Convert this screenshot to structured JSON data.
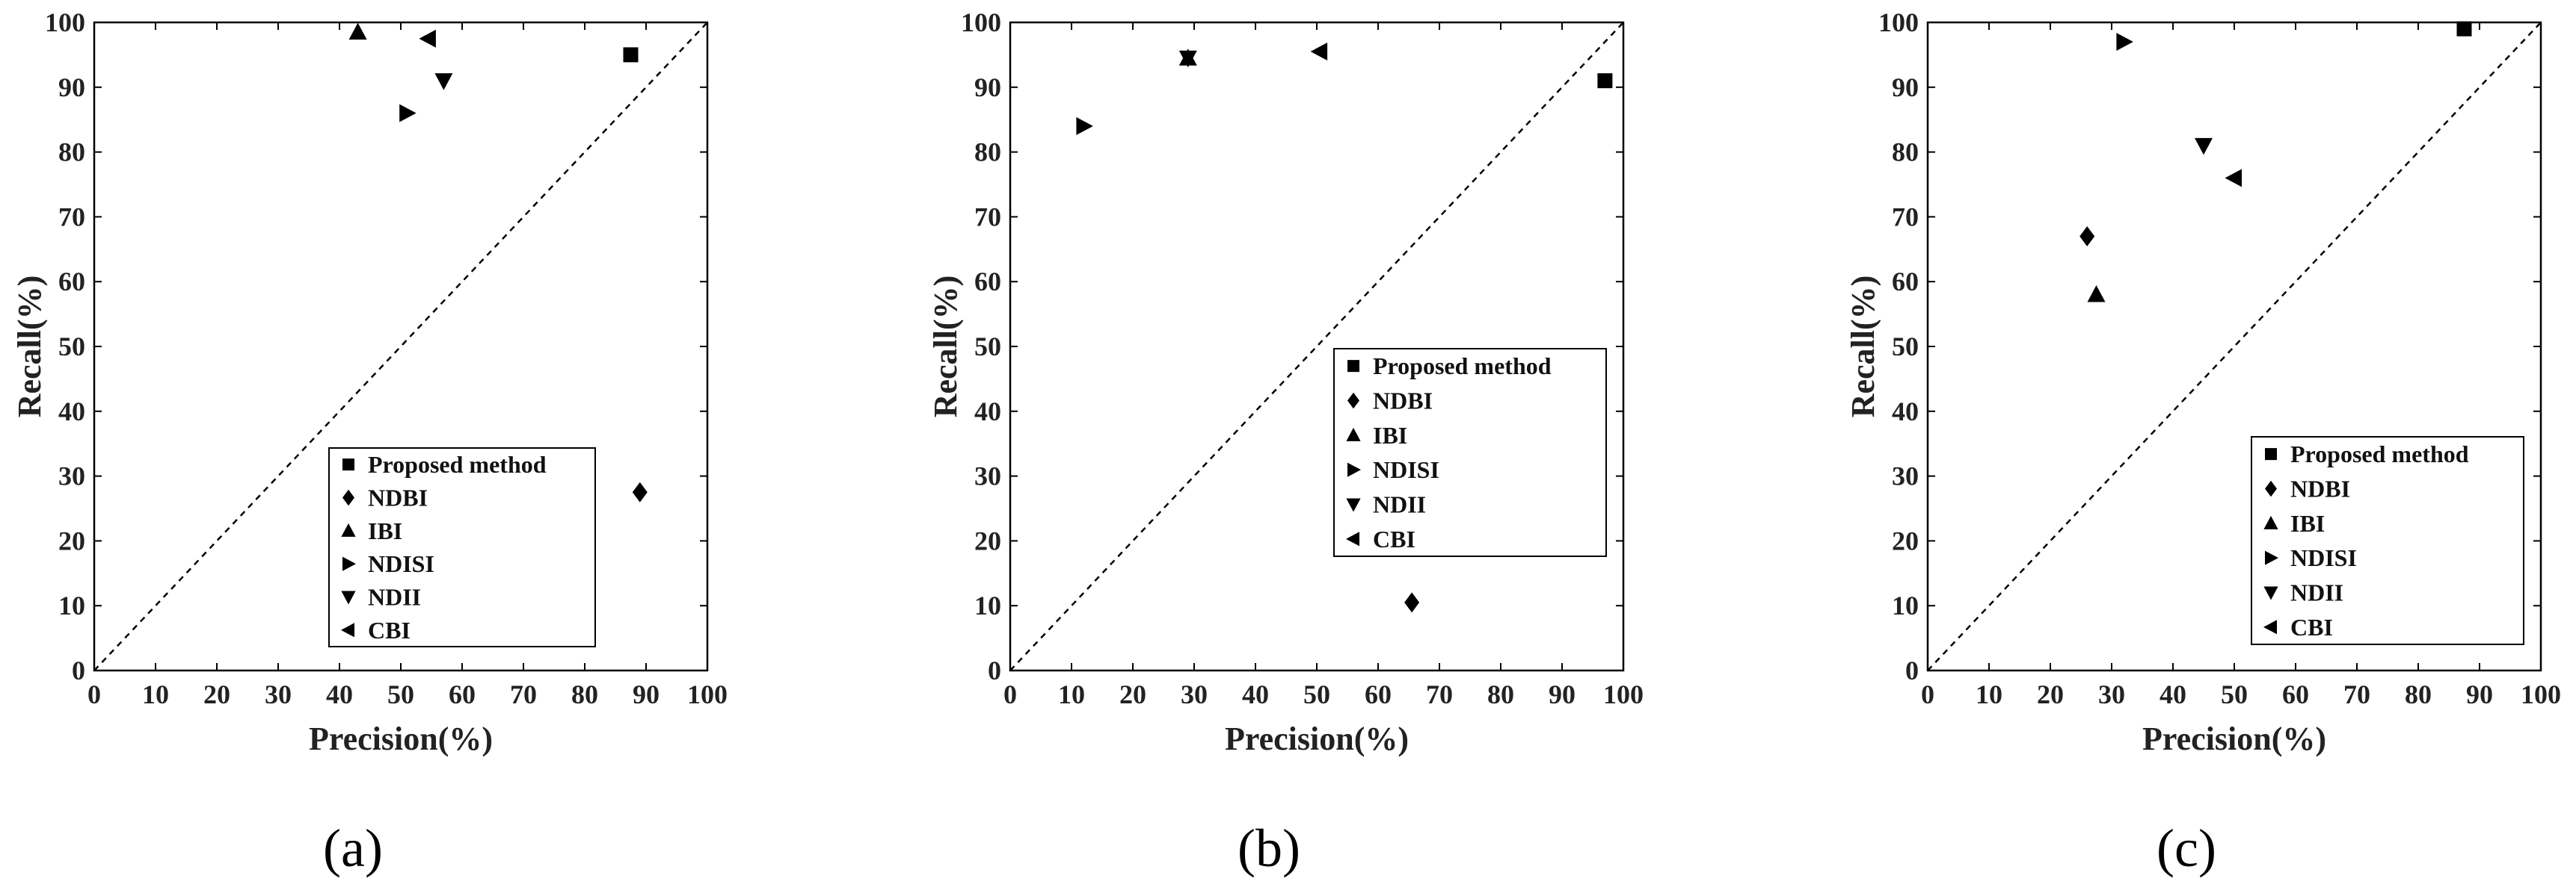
{
  "chart_data": [
    {
      "type": "scatter",
      "panel_label": "(a)",
      "xlabel": "Precision(%)",
      "ylabel": "Recall(%)",
      "xlim": [
        0,
        100
      ],
      "ylim": [
        0,
        100
      ],
      "xticks": [
        "0",
        "10",
        "20",
        "30",
        "40",
        "50",
        "60",
        "70",
        "80",
        "90",
        "100"
      ],
      "yticks": [
        "0",
        "10",
        "20",
        "30",
        "40",
        "50",
        "60",
        "70",
        "80",
        "90",
        "100"
      ],
      "grid": false,
      "reference_line": "y = x (dashed)",
      "legend_position": "bottom-right",
      "series": [
        {
          "name": "Proposed method",
          "marker": "square",
          "x": 87.5,
          "y": 95
        },
        {
          "name": "NDBI",
          "marker": "diamond",
          "x": 89,
          "y": 27.5
        },
        {
          "name": "IBI",
          "marker": "triangle-up",
          "x": 43,
          "y": 98.5
        },
        {
          "name": "NDISI",
          "marker": "triangle-right",
          "x": 51,
          "y": 86
        },
        {
          "name": "NDII",
          "marker": "triangle-down",
          "x": 57,
          "y": 91
        },
        {
          "name": "CBI",
          "marker": "triangle-left",
          "x": 54.5,
          "y": 97.5
        }
      ]
    },
    {
      "type": "scatter",
      "panel_label": "(b)",
      "xlabel": "Precision(%)",
      "ylabel": "Recall(%)",
      "xlim": [
        0,
        100
      ],
      "ylim": [
        0,
        100
      ],
      "xticks": [
        "0",
        "10",
        "20",
        "30",
        "40",
        "50",
        "60",
        "70",
        "80",
        "90",
        "100"
      ],
      "yticks": [
        "0",
        "10",
        "20",
        "30",
        "40",
        "50",
        "60",
        "70",
        "80",
        "90",
        "100"
      ],
      "grid": false,
      "reference_line": "y = x (dashed)",
      "legend_position": "center-right",
      "series": [
        {
          "name": "Proposed method",
          "marker": "square",
          "x": 97,
          "y": 91
        },
        {
          "name": "NDBI",
          "marker": "diamond",
          "x": 65.5,
          "y": 10.5
        },
        {
          "name": "IBI",
          "marker": "triangle-up",
          "x": 29,
          "y": 94.5
        },
        {
          "name": "NDISI",
          "marker": "triangle-right",
          "x": 12,
          "y": 84
        },
        {
          "name": "NDII",
          "marker": "triangle-down",
          "x": 29,
          "y": 94.5
        },
        {
          "name": "CBI",
          "marker": "triangle-left",
          "x": 50.5,
          "y": 95.5
        }
      ]
    },
    {
      "type": "scatter",
      "panel_label": "(c)",
      "xlabel": "Precision(%)",
      "ylabel": "Recall(%)",
      "xlim": [
        0,
        100
      ],
      "ylim": [
        0,
        100
      ],
      "xticks": [
        "0",
        "10",
        "20",
        "30",
        "40",
        "50",
        "60",
        "70",
        "80",
        "90",
        "100"
      ],
      "yticks": [
        "0",
        "10",
        "20",
        "30",
        "40",
        "50",
        "60",
        "70",
        "80",
        "90",
        "100"
      ],
      "grid": false,
      "reference_line": "y = x (dashed)",
      "legend_position": "bottom-right",
      "series": [
        {
          "name": "Proposed method",
          "marker": "square",
          "x": 87.5,
          "y": 99
        },
        {
          "name": "NDBI",
          "marker": "diamond",
          "x": 26,
          "y": 67
        },
        {
          "name": "IBI",
          "marker": "triangle-up",
          "x": 27.5,
          "y": 58
        },
        {
          "name": "NDISI",
          "marker": "triangle-right",
          "x": 32,
          "y": 97
        },
        {
          "name": "NDII",
          "marker": "triangle-down",
          "x": 45,
          "y": 81
        },
        {
          "name": "CBI",
          "marker": "triangle-left",
          "x": 50,
          "y": 76
        }
      ]
    }
  ]
}
